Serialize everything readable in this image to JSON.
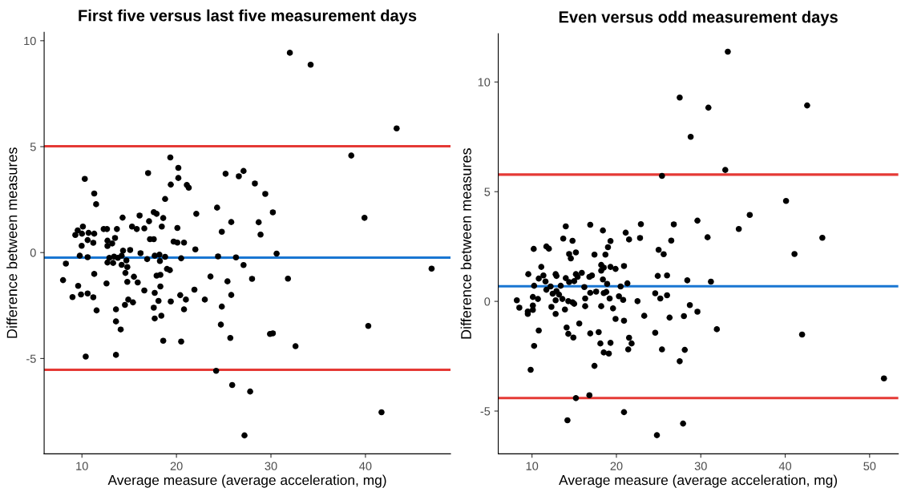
{
  "chart_data": [
    {
      "type": "scatter",
      "title": "First five versus last five measurement days",
      "xlabel": "Average measure (average acceleration, mg)",
      "ylabel": "Difference between measures",
      "xlim": [
        6.0,
        49.0
      ],
      "ylim": [
        -9.5,
        10.4
      ],
      "xticks": [
        10,
        20,
        30,
        40
      ],
      "yticks": [
        {
          "value": -5,
          "label": "-5"
        },
        0,
        5,
        10
      ],
      "grid": false,
      "marker": "circle",
      "series": [
        {
          "color": "#000000",
          "x": [
            19.35,
            20.2,
            17.0,
            10.3,
            20.2,
            19.4,
            21.1,
            21.3,
            11.3,
            11.5,
            18.8,
            22.1,
            16.1,
            14.3,
            17.6,
            17.9,
            18.6,
            17.1,
            10.1,
            9.55,
            9.3,
            10.0,
            10.7,
            11.3,
            12.3,
            12.65,
            13.7,
            15.3,
            15.8,
            16.6,
            18.45,
            20.1,
            10.6,
            11.2,
            9.97,
            12.7,
            13.2,
            13.5,
            12.7,
            17.2,
            17.6,
            19.7,
            20.1,
            20.8,
            22.0,
            9.77,
            10.6,
            8.3,
            14.35,
            15.1,
            16.2,
            12.9,
            13.4,
            13.8,
            14.2,
            12.7,
            13.3,
            14.2,
            14.8,
            14.7,
            16.9,
            17.7,
            18.2,
            18.8,
            18.25,
            20.5,
            19.0,
            19.3,
            14.6,
            11.3,
            15.5,
            17.9,
            18.3,
            8.0,
            12.6,
            14.8,
            15.9,
            9.6,
            18.3,
            21.9,
            16.6,
            17.7,
            9.9,
            10.6,
            9.0,
            11.2,
            20.4,
            23.0,
            21.0,
            14.9,
            15.4,
            14.55,
            18.1,
            19.4,
            11.55,
            13.6,
            17.6,
            20.8,
            18.4,
            17.7,
            13.6,
            14.1,
            18.6,
            20.5,
            10.4,
            13.6,
            32.0,
            34.2,
            43.3,
            38.5,
            25.2,
            26.6,
            27.1,
            28.3,
            29.4,
            24.3,
            30.2,
            39.9,
            25.8,
            28.7,
            24.8,
            28.9,
            24.4,
            26.3,
            30.6,
            27.1,
            47.0,
            23.6,
            25.4,
            28.0,
            31.8,
            25.8,
            24.8,
            24.7,
            25.7,
            29.9,
            30.2,
            40.3,
            32.6,
            24.2,
            25.9,
            27.8,
            41.7,
            27.2
          ],
          "values": [
            4.49,
            4.0,
            3.75,
            3.48,
            3.52,
            3.21,
            3.19,
            3.06,
            2.79,
            2.28,
            2.53,
            1.83,
            1.75,
            1.65,
            1.91,
            1.83,
            1.63,
            1.48,
            1.23,
            1.05,
            0.83,
            0.89,
            0.93,
            0.89,
            1.11,
            1.11,
            1.11,
            1.23,
            1.11,
            1.14,
            1.23,
            1.16,
            0.59,
            0.46,
            0.32,
            0.56,
            0.43,
            0.69,
            0.31,
            0.63,
            0.63,
            0.52,
            0.47,
            0.47,
            0.15,
            -0.15,
            -0.22,
            -0.52,
            0.09,
            0.12,
            -0.03,
            -0.25,
            -0.19,
            -0.25,
            -0.15,
            -0.47,
            -0.49,
            -0.58,
            -0.68,
            -0.37,
            -0.31,
            -0.15,
            -0.1,
            -0.2,
            -0.4,
            -0.27,
            -0.77,
            -0.83,
            -0.96,
            -1.01,
            -1.14,
            -1.09,
            -1.05,
            -1.3,
            -1.46,
            -1.38,
            -1.41,
            -1.57,
            -1.6,
            -1.75,
            -1.79,
            -1.9,
            -1.98,
            -1.93,
            -2.1,
            -2.11,
            -2.01,
            -2.22,
            -2.22,
            -2.22,
            -2.35,
            -2.47,
            -2.28,
            -2.31,
            -2.73,
            -2.68,
            -2.6,
            -2.68,
            -2.98,
            -3.11,
            -3.25,
            -3.63,
            -4.16,
            -4.2,
            -4.91,
            -4.83,
            9.43,
            8.87,
            5.86,
            4.58,
            3.72,
            3.6,
            3.85,
            3.26,
            2.77,
            2.12,
            1.9,
            1.64,
            1.44,
            1.43,
            0.98,
            0.85,
            -0.18,
            -0.23,
            -0.05,
            -0.59,
            -0.76,
            -1.13,
            -1.36,
            -1.24,
            -1.23,
            -2.0,
            -2.55,
            -3.4,
            -4.03,
            -3.84,
            -3.81,
            -3.46,
            -4.42,
            -5.58,
            -6.25,
            -6.56,
            -7.54,
            -8.63
          ]
        }
      ],
      "ref_lines": [
        {
          "axis": "y",
          "value": 5.02,
          "color": "#e53935"
        },
        {
          "axis": "y",
          "value": -0.24,
          "color": "#1976d2"
        },
        {
          "axis": "y",
          "value": -5.53,
          "color": "#e53935"
        }
      ]
    },
    {
      "type": "scatter",
      "title": "Even versus odd measurement days",
      "xlabel": "Average measure (average acceleration, mg)",
      "ylabel": "Difference between measures",
      "xlim": [
        6.0,
        53.4
      ],
      "ylim": [
        -6.95,
        12.2
      ],
      "xticks": [
        10,
        20,
        30,
        40,
        50
      ],
      "yticks": [
        {
          "value": -5,
          "label": "-5"
        },
        0,
        5,
        10
      ],
      "grid": false,
      "marker": "circle",
      "series": [
        {
          "color": "#000000",
          "x": [
            14.0,
            16.9,
            18.4,
            21.1,
            22.9,
            22.8,
            21.5,
            13.7,
            14.8,
            19.3,
            10.2,
            11.7,
            12.0,
            19.0,
            14.4,
            14.6,
            15.2,
            17.4,
            18.7,
            11.1,
            18.2,
            18.5,
            18.2,
            19.3,
            19.9,
            20.9,
            9.56,
            11.35,
            12.8,
            12.9,
            14.0,
            15.2,
            15.4,
            15.9,
            10.8,
            11.6,
            14.4,
            15.0,
            16.8,
            17.1,
            18.4,
            18.9,
            21.3,
            10.25,
            12.2,
            13.4,
            16.2,
            20.5,
            11.7,
            12.45,
            12.9,
            13.2,
            12.8,
            16.9,
            17.6,
            18.5,
            18.8,
            10.1,
            10.7,
            13.6,
            16.3,
            19.2,
            20.3,
            20.8,
            22.5,
            8.2,
            8.5,
            10.1,
            10.1,
            9.5,
            9.5,
            14.3,
            15.0,
            14.8,
            12.3,
            13.9,
            16.3,
            18.2,
            19.6,
            12.8,
            23.3,
            19.9,
            20.9,
            15.6,
            14.1,
            10.8,
            14.3,
            14.9,
            16.9,
            17.9,
            21.5,
            21.8,
            18.1,
            19.3,
            10.25,
            21.4,
            18.5,
            19.1,
            17.4,
            9.84,
            15.2,
            16.8,
            20.9,
            14.2,
            33.2,
            27.5,
            30.9,
            42.6,
            28.8,
            32.9,
            25.4,
            40.1,
            35.8,
            29.6,
            26.8,
            34.5,
            44.4,
            26.5,
            30.8,
            25.0,
            25.6,
            41.1,
            24.9,
            26.0,
            28.4,
            31.2,
            24.6,
            25.2,
            26.0,
            28.7,
            29.6,
            26.3,
            28.0,
            31.9,
            42.0,
            24.6,
            25.4,
            28.1,
            27.5,
            51.7,
            27.9,
            24.8
          ],
          "values": [
            3.42,
            3.49,
            3.23,
            3.13,
            3.52,
            2.89,
            2.82,
            2.86,
            2.76,
            2.75,
            2.39,
            2.5,
            2.4,
            2.47,
            2.16,
            1.96,
            2.23,
            2.13,
            2.13,
            1.57,
            1.66,
            1.54,
            1.4,
            1.57,
            1.48,
            1.61,
            1.24,
            1.18,
            1.24,
            1.16,
            1.06,
            1.24,
            1.12,
            1.3,
            1.04,
            0.91,
            0.88,
            0.92,
            1.12,
            1.18,
            1.0,
            0.8,
            0.82,
            0.71,
            0.68,
            0.71,
            0.65,
            0.68,
            0.53,
            0.35,
            0.47,
            0.31,
            0.05,
            0.39,
            0.44,
            0.38,
            0.43,
            0.2,
            0.11,
            0.11,
            0.13,
            0.13,
            0.23,
            0.07,
            0.01,
            0.05,
            -0.29,
            -0.19,
            -0.39,
            -0.46,
            -0.57,
            0.01,
            -0.11,
            -0.04,
            -0.25,
            -0.37,
            -0.22,
            -0.22,
            -0.32,
            -0.57,
            -0.66,
            -0.8,
            -0.88,
            -1.01,
            -1.19,
            -1.33,
            -1.48,
            -1.65,
            -1.46,
            -1.4,
            -1.66,
            -1.92,
            -1.92,
            -1.89,
            -2.03,
            -2.19,
            -2.33,
            -2.38,
            -2.94,
            -3.12,
            -4.41,
            -4.28,
            -5.05,
            -5.42,
            11.38,
            9.29,
            8.83,
            8.93,
            7.5,
            5.99,
            5.72,
            4.58,
            3.94,
            3.68,
            3.51,
            3.3,
            2.9,
            2.77,
            2.92,
            2.35,
            2.15,
            2.16,
            1.16,
            1.18,
            0.96,
            0.9,
            0.37,
            0.13,
            0.28,
            -0.17,
            -0.47,
            -0.74,
            -0.67,
            -1.27,
            -1.51,
            -1.43,
            -2.19,
            -2.21,
            -2.73,
            -3.51,
            -5.57,
            -6.1
          ]
        }
      ],
      "ref_lines": [
        {
          "axis": "y",
          "value": 5.78,
          "color": "#e53935"
        },
        {
          "axis": "y",
          "value": 0.69,
          "color": "#1976d2"
        },
        {
          "axis": "y",
          "value": -4.41,
          "color": "#e53935"
        }
      ]
    }
  ]
}
